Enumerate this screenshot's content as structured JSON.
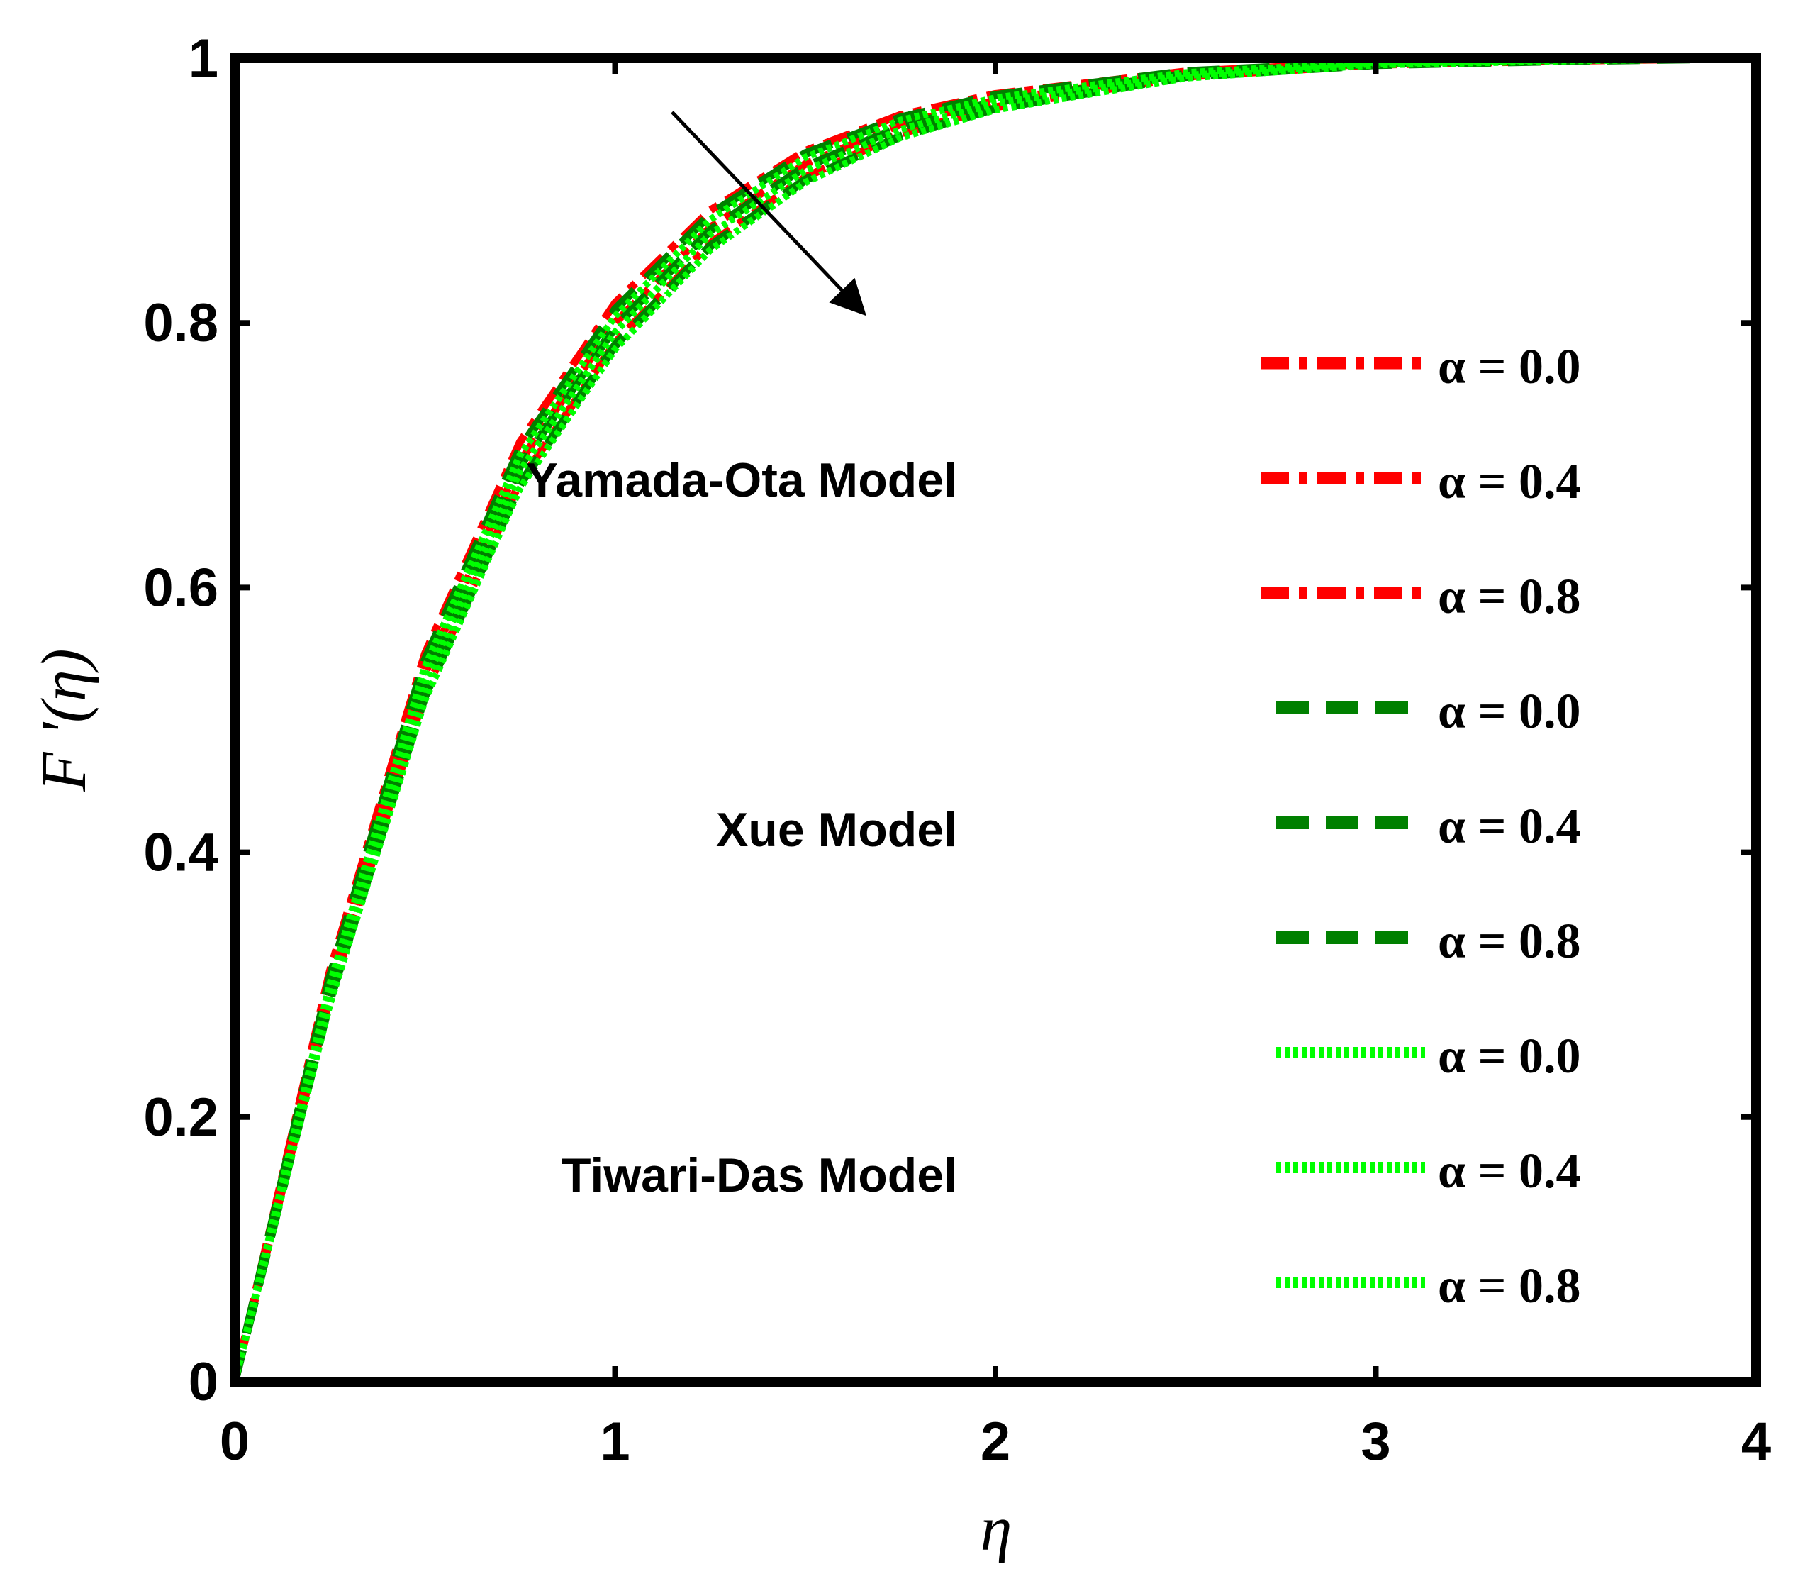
{
  "chart_data": {
    "type": "line",
    "xlabel": "η",
    "ylabel": "F '(η)",
    "xlim": [
      0,
      4
    ],
    "ylim": [
      0,
      1
    ],
    "x_ticks": [
      "0",
      "1",
      "2",
      "3",
      "4"
    ],
    "y_ticks": [
      "0",
      "0.2",
      "0.4",
      "0.6",
      "0.8",
      "1"
    ],
    "grid": false,
    "legend_position": "right",
    "x": [
      0,
      0.25,
      0.5,
      0.75,
      1.0,
      1.25,
      1.5,
      1.75,
      2.0,
      2.5,
      3.0,
      3.5,
      4.0
    ],
    "groups": [
      {
        "label": "Yamada-Ota Model",
        "color": "#ff0000",
        "style": "dash-dot",
        "series": [
          {
            "name": "α = 0.0",
            "values": [
              0,
              0.31,
              0.55,
              0.71,
              0.815,
              0.885,
              0.93,
              0.957,
              0.973,
              0.99,
              0.997,
              0.999,
              1.0
            ]
          },
          {
            "name": "α = 0.4",
            "values": [
              0,
              0.3,
              0.535,
              0.695,
              0.8,
              0.872,
              0.92,
              0.95,
              0.968,
              0.988,
              0.996,
              0.999,
              1.0
            ]
          },
          {
            "name": "α = 0.8",
            "values": [
              0,
              0.29,
              0.52,
              0.68,
              0.785,
              0.86,
              0.91,
              0.943,
              0.963,
              0.986,
              0.995,
              0.998,
              1.0
            ]
          }
        ]
      },
      {
        "label": "Xue Model",
        "color": "#008000",
        "style": "dash",
        "series": [
          {
            "name": "α = 0.0",
            "values": [
              0,
              0.305,
              0.545,
              0.705,
              0.81,
              0.882,
              0.928,
              0.955,
              0.972,
              0.99,
              0.997,
              0.999,
              1.0
            ]
          },
          {
            "name": "α = 0.4",
            "values": [
              0,
              0.297,
              0.532,
              0.692,
              0.797,
              0.87,
              0.918,
              0.948,
              0.967,
              0.988,
              0.996,
              0.999,
              1.0
            ]
          },
          {
            "name": "α = 0.8",
            "values": [
              0,
              0.288,
              0.518,
              0.678,
              0.783,
              0.858,
              0.908,
              0.941,
              0.962,
              0.986,
              0.995,
              0.998,
              1.0
            ]
          }
        ]
      },
      {
        "label": "Tiwari-Das Model",
        "color": "#00ff00",
        "style": "dot",
        "series": [
          {
            "name": "α = 0.0",
            "values": [
              0,
              0.3,
              0.54,
              0.7,
              0.805,
              0.878,
              0.925,
              0.953,
              0.97,
              0.989,
              0.997,
              0.999,
              1.0
            ]
          },
          {
            "name": "α = 0.4",
            "values": [
              0,
              0.293,
              0.528,
              0.688,
              0.793,
              0.867,
              0.915,
              0.946,
              0.966,
              0.987,
              0.996,
              0.999,
              1.0
            ]
          },
          {
            "name": "α = 0.8",
            "values": [
              0,
              0.285,
              0.515,
              0.675,
              0.78,
              0.855,
              0.906,
              0.94,
              0.961,
              0.985,
              0.995,
              0.998,
              1.0
            ]
          }
        ]
      }
    ]
  }
}
